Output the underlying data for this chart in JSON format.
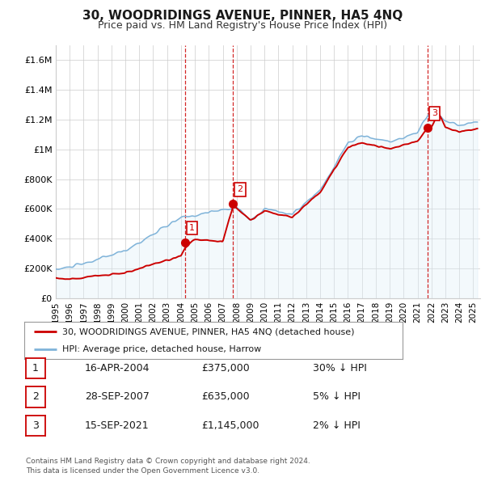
{
  "title": "30, WOODRIDINGS AVENUE, PINNER, HA5 4NQ",
  "subtitle": "Price paid vs. HM Land Registry's House Price Index (HPI)",
  "ylim": [
    0,
    1700000
  ],
  "yticks": [
    0,
    200000,
    400000,
    600000,
    800000,
    1000000,
    1200000,
    1400000,
    1600000
  ],
  "ytick_labels": [
    "£0",
    "£200K",
    "£400K",
    "£600K",
    "£800K",
    "£1M",
    "£1.2M",
    "£1.4M",
    "£1.6M"
  ],
  "transactions": [
    {
      "date_num": 2004.29,
      "price": 375000,
      "label": "1"
    },
    {
      "date_num": 2007.74,
      "price": 635000,
      "label": "2"
    },
    {
      "date_num": 2021.71,
      "price": 1145000,
      "label": "3"
    }
  ],
  "transaction_color": "#cc0000",
  "hpi_color": "#7fb3d9",
  "hpi_fill_color": "#ddeef8",
  "legend_line1": "30, WOODRIDINGS AVENUE, PINNER, HA5 4NQ (detached house)",
  "legend_line2": "HPI: Average price, detached house, Harrow",
  "table_rows": [
    {
      "num": "1",
      "date": "16-APR-2004",
      "price": "£375,000",
      "hpi": "30% ↓ HPI"
    },
    {
      "num": "2",
      "date": "28-SEP-2007",
      "price": "£635,000",
      "hpi": "5% ↓ HPI"
    },
    {
      "num": "3",
      "date": "15-SEP-2021",
      "price": "£1,145,000",
      "hpi": "2% ↓ HPI"
    }
  ],
  "footer": "Contains HM Land Registry data © Crown copyright and database right 2024.\nThis data is licensed under the Open Government Licence v3.0.",
  "background_color": "#ffffff",
  "grid_color": "#cccccc"
}
